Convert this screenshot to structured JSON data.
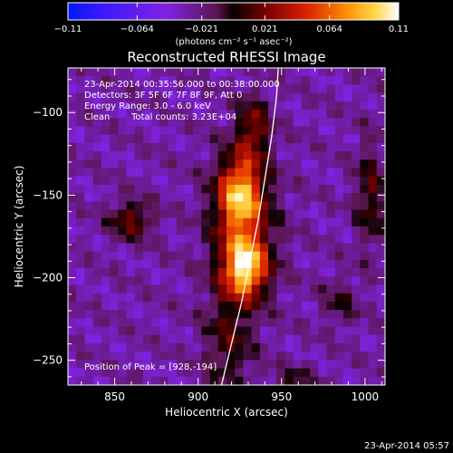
{
  "chart_data": {
    "type": "heatmap",
    "title": "Reconstructed RHESSI Image",
    "xlabel": "Heliocentric X (arcsec)",
    "ylabel": "Heliocentric Y (arcsec)",
    "xlim": [
      822,
      1012
    ],
    "ylim": [
      -265,
      -73
    ],
    "xticks": [
      850,
      900,
      950,
      1000
    ],
    "yticks": [
      -100,
      -150,
      -200,
      -250
    ],
    "colorbar": {
      "ticks": [
        -0.11,
        -0.064,
        -0.021,
        0.021,
        0.064,
        0.11
      ],
      "tick_labels": [
        "−0.11",
        "−0.064",
        "−0.021",
        "0.021",
        "0.064",
        "0.11"
      ],
      "unit_label": "(photons cm⁻² s⁻¹ asec⁻²)",
      "range": [
        -0.11,
        0.11
      ]
    },
    "annotations": {
      "time_range": "23-Apr-2014 00:35:56.000 to 00:38:00.000",
      "detectors": "Detectors: 3F 5F 6F 7F 8F 9F, Att 0",
      "energy": "Energy Range: 3.0 - 6.0 keV",
      "algorithm": "Clean",
      "counts": "Total counts: 3.23E+04",
      "peak": "Position of Peak = [928,-194]"
    },
    "sources": [
      {
        "x": 925,
        "y": -150,
        "peak": 0.095,
        "sx": 9,
        "sy": 16
      },
      {
        "x": 928,
        "y": -194,
        "peak": 0.11,
        "sx": 9,
        "sy": 12
      },
      {
        "x": 927,
        "y": -172,
        "peak": 0.045,
        "sx": 14,
        "sy": 30
      },
      {
        "x": 933,
        "y": -110,
        "peak": 0.05,
        "sx": 7,
        "sy": 14
      },
      {
        "x": 918,
        "y": -240,
        "peak": 0.035,
        "sx": 10,
        "sy": 22
      },
      {
        "x": 860,
        "y": -165,
        "peak": 0.05,
        "sx": 9,
        "sy": 8
      },
      {
        "x": 1003,
        "y": -150,
        "peak": 0.04,
        "sx": 6,
        "sy": 22
      },
      {
        "x": 985,
        "y": -215,
        "peak": 0.025,
        "sx": 8,
        "sy": 10
      },
      {
        "x": 958,
        "y": -262,
        "peak": 0.025,
        "sx": 10,
        "sy": 6
      }
    ],
    "limb": [
      {
        "x": 914,
        "y": -265
      },
      {
        "x": 920,
        "y": -240
      },
      {
        "x": 926,
        "y": -215
      },
      {
        "x": 931,
        "y": -190
      },
      {
        "x": 936,
        "y": -165
      },
      {
        "x": 940,
        "y": -140
      },
      {
        "x": 944,
        "y": -115
      },
      {
        "x": 947,
        "y": -90
      },
      {
        "x": 948,
        "y": -73
      }
    ]
  },
  "footer": {
    "timestamp": "23-Apr-2014 05:57"
  }
}
